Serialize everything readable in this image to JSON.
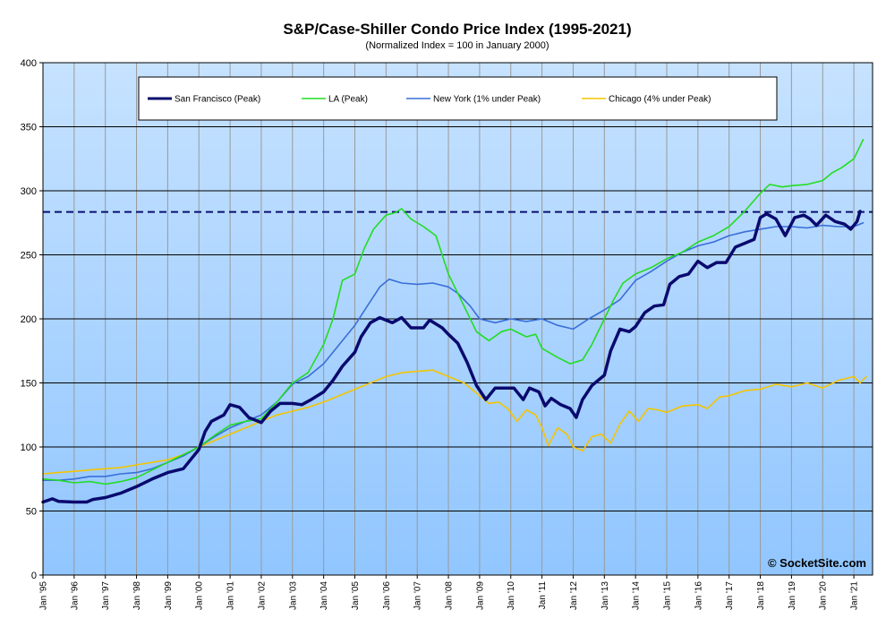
{
  "chart_data": {
    "type": "line",
    "title": "S&P/Case-Shiller Condo Price Index (1995-2021)",
    "subtitle": "(Normalized Index = 100 in January 2000)",
    "credit": "© SocketSite.com",
    "xlabel": "",
    "ylabel": "",
    "ylim": [
      0,
      400
    ],
    "yticks": [
      0,
      50,
      100,
      150,
      200,
      250,
      300,
      350,
      400
    ],
    "xlim": [
      1995.0,
      2021.6
    ],
    "xticks": [
      {
        "x": 1995,
        "label": "Jan '95"
      },
      {
        "x": 1996,
        "label": "Jan '96"
      },
      {
        "x": 1997,
        "label": "Jan '97"
      },
      {
        "x": 1998,
        "label": "Jan '98"
      },
      {
        "x": 1999,
        "label": "Jan '99"
      },
      {
        "x": 2000,
        "label": "Jan '00"
      },
      {
        "x": 2001,
        "label": "Jan '01"
      },
      {
        "x": 2002,
        "label": "Jan '02"
      },
      {
        "x": 2003,
        "label": "Jan '03"
      },
      {
        "x": 2004,
        "label": "Jan '04"
      },
      {
        "x": 2005,
        "label": "Jan '05"
      },
      {
        "x": 2006,
        "label": "Jan '06"
      },
      {
        "x": 2007,
        "label": "Jan '07"
      },
      {
        "x": 2008,
        "label": "Jan '08"
      },
      {
        "x": 2009,
        "label": "Jan '09"
      },
      {
        "x": 2010,
        "label": "Jan '10"
      },
      {
        "x": 2011,
        "label": "Jan '11"
      },
      {
        "x": 2012,
        "label": "Jan '12"
      },
      {
        "x": 2013,
        "label": "Jan '13"
      },
      {
        "x": 2014,
        "label": "Jan '14"
      },
      {
        "x": 2015,
        "label": "Jan '15"
      },
      {
        "x": 2016,
        "label": "Jan '16"
      },
      {
        "x": 2017,
        "label": "Jan '17"
      },
      {
        "x": 2018,
        "label": "Jan '18"
      },
      {
        "x": 2019,
        "label": "Jan '19"
      },
      {
        "x": 2020,
        "label": "Jan '20"
      },
      {
        "x": 2021,
        "label": "Jan '21"
      }
    ],
    "grid": true,
    "legend_position": "top",
    "reference_line": {
      "y": 283.5,
      "style": "dashed",
      "color": "#0a1070"
    },
    "series": [
      {
        "name": "San Francisco (Peak)",
        "color": "#0a0a6e",
        "points": [
          [
            1995.0,
            57
          ],
          [
            1995.3,
            59.5
          ],
          [
            1995.5,
            57.5
          ],
          [
            1996.0,
            57
          ],
          [
            1996.4,
            57
          ],
          [
            1996.6,
            59
          ],
          [
            1997.0,
            60.5
          ],
          [
            1997.5,
            64
          ],
          [
            1998.0,
            69
          ],
          [
            1998.5,
            75
          ],
          [
            1999.0,
            80
          ],
          [
            1999.5,
            83
          ],
          [
            2000.0,
            98
          ],
          [
            2000.2,
            112
          ],
          [
            2000.4,
            120
          ],
          [
            2000.8,
            125
          ],
          [
            2001.0,
            133
          ],
          [
            2001.3,
            131
          ],
          [
            2001.6,
            123
          ],
          [
            2002.0,
            119
          ],
          [
            2002.3,
            128
          ],
          [
            2002.6,
            134
          ],
          [
            2003.0,
            134
          ],
          [
            2003.3,
            133
          ],
          [
            2003.6,
            137
          ],
          [
            2004.0,
            143
          ],
          [
            2004.3,
            152
          ],
          [
            2004.6,
            163
          ],
          [
            2005.0,
            174
          ],
          [
            2005.2,
            186
          ],
          [
            2005.5,
            197
          ],
          [
            2005.8,
            201
          ],
          [
            2006.2,
            197
          ],
          [
            2006.5,
            201
          ],
          [
            2006.8,
            193
          ],
          [
            2007.2,
            193
          ],
          [
            2007.4,
            199
          ],
          [
            2007.8,
            193
          ],
          [
            2008.0,
            188
          ],
          [
            2008.3,
            181
          ],
          [
            2008.6,
            166
          ],
          [
            2008.9,
            148
          ],
          [
            2009.2,
            137
          ],
          [
            2009.5,
            146
          ],
          [
            2009.8,
            146
          ],
          [
            2010.1,
            146
          ],
          [
            2010.4,
            137
          ],
          [
            2010.6,
            146
          ],
          [
            2010.9,
            143
          ],
          [
            2011.1,
            132
          ],
          [
            2011.3,
            138
          ],
          [
            2011.6,
            133
          ],
          [
            2011.9,
            130
          ],
          [
            2012.1,
            123
          ],
          [
            2012.3,
            137
          ],
          [
            2012.6,
            148
          ],
          [
            2013.0,
            156
          ],
          [
            2013.2,
            175
          ],
          [
            2013.5,
            192
          ],
          [
            2013.8,
            190
          ],
          [
            2014.0,
            194
          ],
          [
            2014.3,
            205
          ],
          [
            2014.6,
            210
          ],
          [
            2014.9,
            211
          ],
          [
            2015.1,
            227
          ],
          [
            2015.4,
            233
          ],
          [
            2015.7,
            235
          ],
          [
            2016.0,
            245
          ],
          [
            2016.3,
            240
          ],
          [
            2016.6,
            244
          ],
          [
            2016.9,
            244
          ],
          [
            2017.2,
            256
          ],
          [
            2017.5,
            259
          ],
          [
            2017.8,
            262
          ],
          [
            2018.0,
            279
          ],
          [
            2018.2,
            282
          ],
          [
            2018.5,
            278
          ],
          [
            2018.8,
            265
          ],
          [
            2019.1,
            279
          ],
          [
            2019.4,
            281
          ],
          [
            2019.6,
            278
          ],
          [
            2019.8,
            273
          ],
          [
            2020.1,
            281
          ],
          [
            2020.4,
            276
          ],
          [
            2020.7,
            274
          ],
          [
            2020.9,
            270
          ],
          [
            2021.1,
            276
          ],
          [
            2021.2,
            284
          ]
        ]
      },
      {
        "name": "LA (Peak)",
        "color": "#22dd22",
        "points": [
          [
            1995.0,
            75
          ],
          [
            1995.5,
            74
          ],
          [
            1996.0,
            72
          ],
          [
            1996.5,
            73
          ],
          [
            1997.0,
            71
          ],
          [
            1997.5,
            73
          ],
          [
            1998.0,
            76
          ],
          [
            1998.5,
            82
          ],
          [
            1999.0,
            88
          ],
          [
            1999.5,
            94
          ],
          [
            2000.0,
            100
          ],
          [
            2000.5,
            109
          ],
          [
            2001.0,
            117
          ],
          [
            2001.5,
            120
          ],
          [
            2002.0,
            122
          ],
          [
            2002.5,
            135
          ],
          [
            2003.0,
            150
          ],
          [
            2003.5,
            158
          ],
          [
            2004.0,
            180
          ],
          [
            2004.3,
            200
          ],
          [
            2004.6,
            230
          ],
          [
            2005.0,
            235
          ],
          [
            2005.3,
            255
          ],
          [
            2005.6,
            270
          ],
          [
            2006.0,
            281
          ],
          [
            2006.3,
            283
          ],
          [
            2006.5,
            286
          ],
          [
            2006.8,
            278
          ],
          [
            2007.2,
            272
          ],
          [
            2007.6,
            265
          ],
          [
            2008.0,
            235
          ],
          [
            2008.3,
            220
          ],
          [
            2008.6,
            205
          ],
          [
            2008.9,
            190
          ],
          [
            2009.3,
            183
          ],
          [
            2009.7,
            190
          ],
          [
            2010.0,
            192
          ],
          [
            2010.5,
            186
          ],
          [
            2010.8,
            188
          ],
          [
            2011.0,
            177
          ],
          [
            2011.5,
            170
          ],
          [
            2011.9,
            165
          ],
          [
            2012.3,
            168
          ],
          [
            2012.6,
            180
          ],
          [
            2013.0,
            200
          ],
          [
            2013.3,
            215
          ],
          [
            2013.6,
            228
          ],
          [
            2014.0,
            235
          ],
          [
            2014.5,
            240
          ],
          [
            2015.0,
            247
          ],
          [
            2015.5,
            252
          ],
          [
            2016.0,
            260
          ],
          [
            2016.5,
            265
          ],
          [
            2017.0,
            272
          ],
          [
            2017.5,
            284
          ],
          [
            2018.0,
            298
          ],
          [
            2018.3,
            305
          ],
          [
            2018.7,
            303
          ],
          [
            2019.0,
            304
          ],
          [
            2019.5,
            305
          ],
          [
            2020.0,
            308
          ],
          [
            2020.3,
            314
          ],
          [
            2020.6,
            318
          ],
          [
            2021.0,
            325
          ],
          [
            2021.3,
            340
          ]
        ]
      },
      {
        "name": "New York (1% under Peak)",
        "color": "#3a6fd8",
        "points": [
          [
            1995.0,
            74
          ],
          [
            1995.5,
            74
          ],
          [
            1996.0,
            75
          ],
          [
            1996.5,
            77
          ],
          [
            1997.0,
            77
          ],
          [
            1997.5,
            79
          ],
          [
            1998.0,
            80
          ],
          [
            1998.5,
            83
          ],
          [
            1999.0,
            88
          ],
          [
            1999.5,
            93
          ],
          [
            2000.0,
            100
          ],
          [
            2000.5,
            108
          ],
          [
            2001.0,
            115
          ],
          [
            2001.5,
            120
          ],
          [
            2002.0,
            125
          ],
          [
            2002.5,
            135
          ],
          [
            2003.0,
            149
          ],
          [
            2003.5,
            155
          ],
          [
            2004.0,
            165
          ],
          [
            2004.5,
            180
          ],
          [
            2005.0,
            195
          ],
          [
            2005.4,
            210
          ],
          [
            2005.8,
            225
          ],
          [
            2006.1,
            231
          ],
          [
            2006.5,
            228
          ],
          [
            2007.0,
            227
          ],
          [
            2007.5,
            228
          ],
          [
            2008.0,
            225
          ],
          [
            2008.3,
            220
          ],
          [
            2008.7,
            210
          ],
          [
            2009.0,
            200
          ],
          [
            2009.5,
            197
          ],
          [
            2010.0,
            200
          ],
          [
            2010.5,
            198
          ],
          [
            2011.0,
            200
          ],
          [
            2011.5,
            195
          ],
          [
            2012.0,
            192
          ],
          [
            2012.5,
            200
          ],
          [
            2013.0,
            207
          ],
          [
            2013.5,
            215
          ],
          [
            2014.0,
            230
          ],
          [
            2014.5,
            237
          ],
          [
            2015.0,
            245
          ],
          [
            2015.5,
            252
          ],
          [
            2016.0,
            257
          ],
          [
            2016.5,
            260
          ],
          [
            2017.0,
            265
          ],
          [
            2017.5,
            268
          ],
          [
            2018.0,
            270
          ],
          [
            2018.5,
            272
          ],
          [
            2019.0,
            272
          ],
          [
            2019.5,
            271
          ],
          [
            2020.0,
            273
          ],
          [
            2020.5,
            272
          ],
          [
            2021.0,
            272
          ],
          [
            2021.3,
            275
          ]
        ]
      },
      {
        "name": "Chicago (4% under Peak)",
        "color": "#f5c400",
        "points": [
          [
            1995.0,
            79
          ],
          [
            1995.5,
            80
          ],
          [
            1996.0,
            81
          ],
          [
            1996.5,
            82
          ],
          [
            1997.0,
            83
          ],
          [
            1997.5,
            84
          ],
          [
            1998.0,
            86
          ],
          [
            1998.5,
            88
          ],
          [
            1999.0,
            90
          ],
          [
            1999.5,
            94
          ],
          [
            2000.0,
            100
          ],
          [
            2000.5,
            105
          ],
          [
            2001.0,
            110
          ],
          [
            2001.5,
            115
          ],
          [
            2002.0,
            120
          ],
          [
            2002.5,
            125
          ],
          [
            2003.0,
            128
          ],
          [
            2003.5,
            131
          ],
          [
            2004.0,
            135
          ],
          [
            2004.5,
            140
          ],
          [
            2005.0,
            145
          ],
          [
            2005.5,
            150
          ],
          [
            2006.0,
            155
          ],
          [
            2006.5,
            158
          ],
          [
            2007.0,
            159
          ],
          [
            2007.5,
            160
          ],
          [
            2008.0,
            155
          ],
          [
            2008.5,
            150
          ],
          [
            2009.0,
            140
          ],
          [
            2009.3,
            134
          ],
          [
            2009.6,
            135
          ],
          [
            2009.9,
            130
          ],
          [
            2010.2,
            120
          ],
          [
            2010.5,
            129
          ],
          [
            2010.8,
            125
          ],
          [
            2011.0,
            115
          ],
          [
            2011.2,
            101
          ],
          [
            2011.5,
            115
          ],
          [
            2011.8,
            110
          ],
          [
            2012.0,
            100
          ],
          [
            2012.3,
            97
          ],
          [
            2012.6,
            108
          ],
          [
            2012.9,
            110
          ],
          [
            2013.2,
            103
          ],
          [
            2013.5,
            118
          ],
          [
            2013.8,
            128
          ],
          [
            2014.1,
            120
          ],
          [
            2014.4,
            130
          ],
          [
            2014.7,
            129
          ],
          [
            2015.0,
            127
          ],
          [
            2015.5,
            132
          ],
          [
            2016.0,
            133
          ],
          [
            2016.3,
            130
          ],
          [
            2016.7,
            139
          ],
          [
            2017.0,
            140
          ],
          [
            2017.5,
            144
          ],
          [
            2018.0,
            145
          ],
          [
            2018.5,
            149
          ],
          [
            2019.0,
            147
          ],
          [
            2019.5,
            150
          ],
          [
            2020.0,
            146
          ],
          [
            2020.5,
            152
          ],
          [
            2021.0,
            155
          ],
          [
            2021.2,
            150
          ],
          [
            2021.4,
            155
          ]
        ]
      }
    ]
  }
}
